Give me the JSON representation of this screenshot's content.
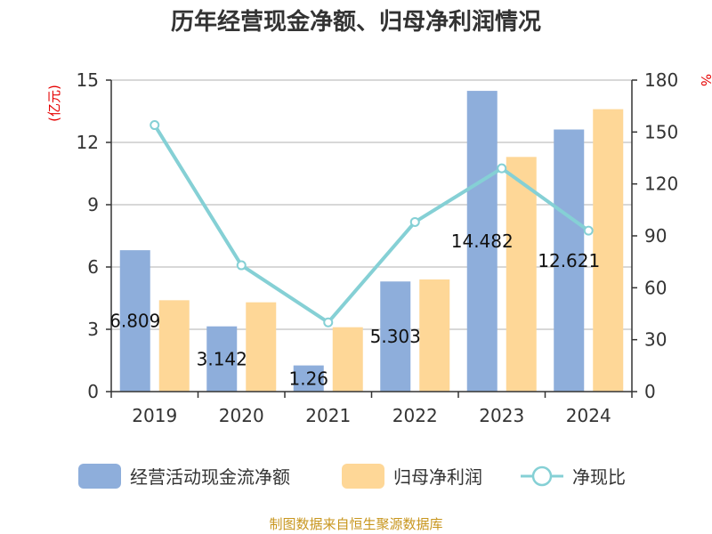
{
  "chart_data": {
    "type": "bar",
    "title": "历年经营现金净额、归母净利润情况",
    "categories": [
      "2019",
      "2020",
      "2021",
      "2022",
      "2023",
      "2024"
    ],
    "series": [
      {
        "name": "经营活动现金流净额",
        "type": "bar",
        "axis": "left",
        "color": "#8eaedb",
        "values": [
          6.809,
          3.142,
          1.26,
          5.303,
          14.482,
          12.621
        ],
        "data_labels": [
          "6.809",
          "3.142",
          "1.26",
          "5.303",
          "14.482",
          "12.621"
        ]
      },
      {
        "name": "归母净利润",
        "type": "bar",
        "axis": "left",
        "color": "#fed797",
        "values": [
          4.4,
          4.3,
          3.1,
          5.4,
          11.3,
          13.6
        ]
      },
      {
        "name": "净现比",
        "type": "line",
        "axis": "right",
        "color": "#85d0d5",
        "values": [
          154,
          73,
          40,
          98,
          129,
          93
        ]
      }
    ],
    "y_left": {
      "unit": "(亿元)",
      "ticks": [
        "0",
        "3",
        "6",
        "9",
        "12",
        "15"
      ],
      "ylim": [
        0,
        15
      ]
    },
    "y_right": {
      "unit": "%",
      "ticks": [
        "0",
        "30",
        "60",
        "90",
        "120",
        "150",
        "180"
      ],
      "ylim": [
        0,
        180
      ]
    },
    "grid": true,
    "legend_position": "bottom",
    "source": "制图数据来自恒生聚源数据库"
  }
}
